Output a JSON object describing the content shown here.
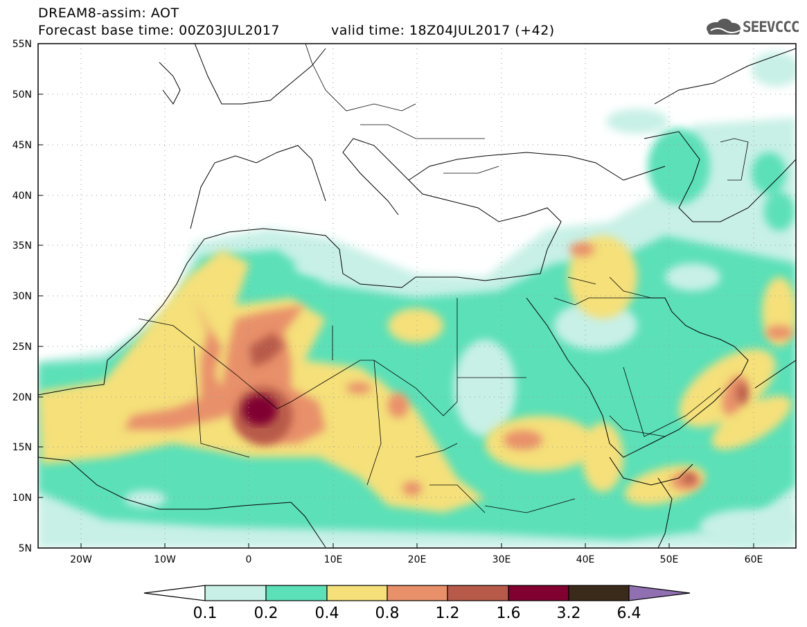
{
  "header": {
    "line1": "DREAM8-assim: AOT",
    "line2": "Forecast base time: 00Z03JUL2017",
    "valid": "valid time: 18Z04JUL2017 (+42)"
  },
  "logo": {
    "text": "SEEVCCC",
    "icon": "cloud-icon"
  },
  "map": {
    "lon_range": [
      -25,
      65
    ],
    "lat_range": [
      5,
      55
    ],
    "lat_labels": [
      "5N",
      "10N",
      "15N",
      "20N",
      "25N",
      "30N",
      "35N",
      "40N",
      "45N",
      "50N",
      "55N"
    ],
    "lon_labels": [
      "20W",
      "10W",
      "0",
      "10E",
      "20E",
      "30E",
      "40E",
      "50E",
      "60E"
    ],
    "grid": true
  },
  "legend": {
    "labels": [
      "0.1",
      "0.2",
      "0.4",
      "0.8",
      "1.2",
      "1.6",
      "3.2",
      "6.4"
    ],
    "colors": [
      "#ffffff",
      "#c8f0e6",
      "#5ce0b8",
      "#f5e07a",
      "#e8906a",
      "#b85a4a",
      "#800030",
      "#3a2a1a",
      "#9070b0"
    ]
  }
}
